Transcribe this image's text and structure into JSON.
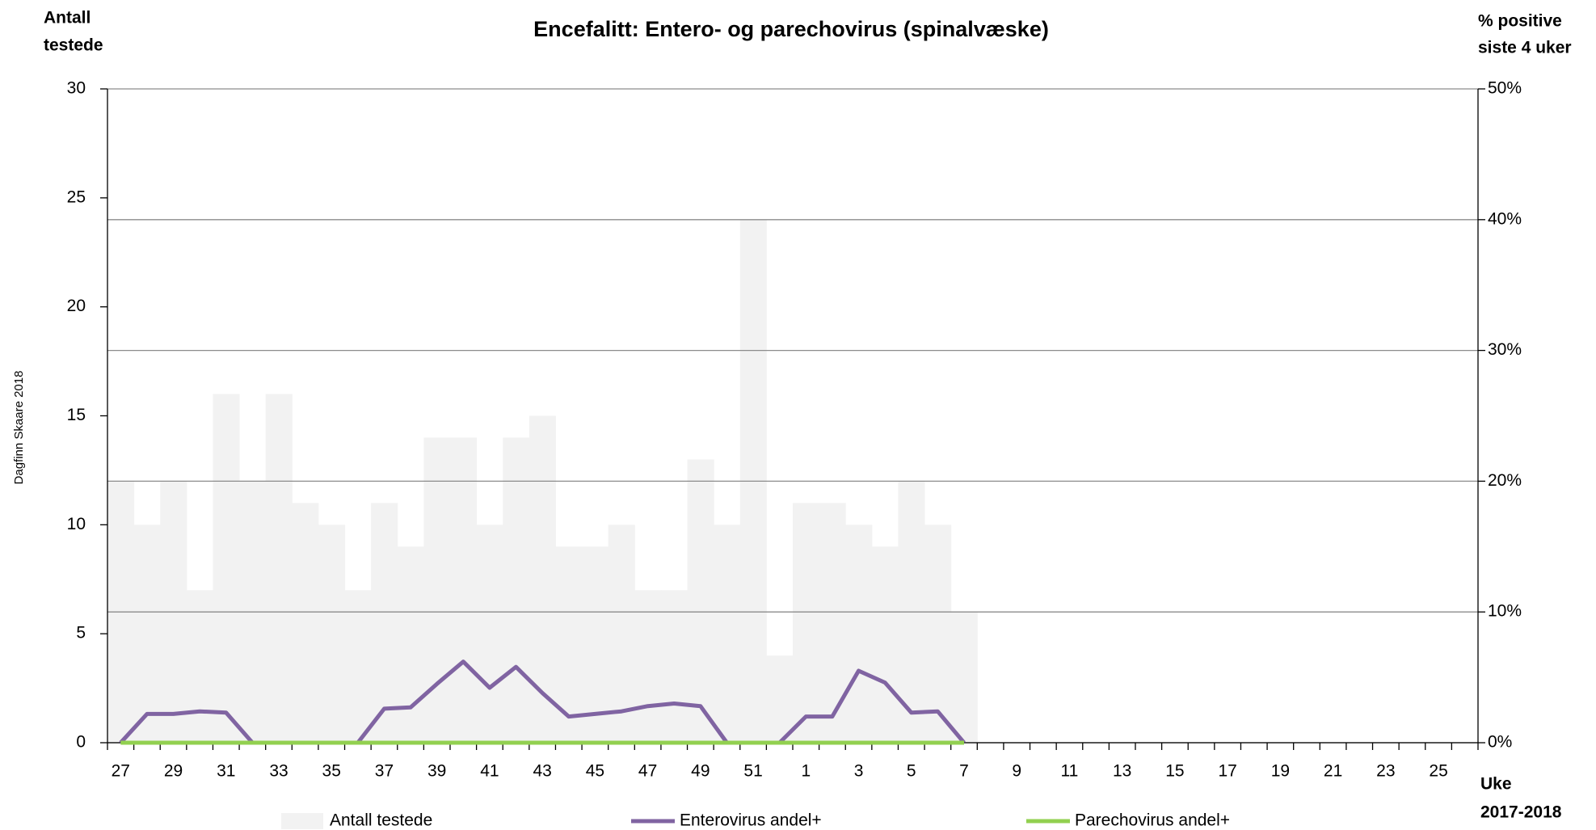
{
  "chart_data": {
    "type": "bar",
    "title": "Encefalitt: Entero- og parechovirus (spinalvæske)",
    "y_label": [
      "Antall",
      "testede"
    ],
    "y2_label": [
      "% positive",
      "siste 4 uker"
    ],
    "x_label": [
      "Uke",
      "2017-2018"
    ],
    "credit": "Dagfinn Skaare 2018",
    "categories": [
      "27",
      null,
      "29",
      null,
      "31",
      null,
      "33",
      null,
      "35",
      null,
      "37",
      null,
      "39",
      null,
      "41",
      null,
      "43",
      null,
      "45",
      null,
      "47",
      null,
      "49",
      null,
      "51",
      null,
      "1",
      null,
      "3",
      null,
      "5",
      null,
      "7",
      null,
      "9",
      null,
      "11",
      null,
      "13",
      null,
      "15",
      null,
      "17",
      null,
      "19",
      null,
      "21",
      null,
      "23",
      null,
      "25",
      null
    ],
    "series": [
      {
        "name": "Antall testede",
        "type": "bar",
        "color": "#f2f2f2",
        "values": [
          12,
          10,
          12,
          7,
          16,
          12,
          16,
          11,
          10,
          7,
          11,
          9,
          14,
          14,
          10,
          14,
          15,
          9,
          9,
          10,
          7,
          7,
          13,
          10,
          24,
          4,
          11,
          11,
          10,
          9,
          12,
          10,
          6,
          null,
          null,
          null,
          null,
          null,
          null,
          null,
          null,
          null,
          null,
          null,
          null,
          null,
          null,
          null,
          null,
          null,
          null,
          null
        ]
      },
      {
        "name": "Enterovirus andel+",
        "type": "line",
        "axis": "y2",
        "color": "#8064a2",
        "values": [
          0,
          2.2,
          2.2,
          2.4,
          2.3,
          0,
          0,
          0,
          0,
          0,
          2.6,
          2.7,
          4.5,
          6.2,
          4.2,
          5.8,
          3.8,
          2,
          2.2,
          2.4,
          2.8,
          3,
          2.8,
          0,
          0,
          0,
          2,
          2,
          5.5,
          4.6,
          2.3,
          2.4,
          0,
          null,
          null,
          null,
          null,
          null,
          null,
          null,
          null,
          null,
          null,
          null,
          null,
          null,
          null,
          null,
          null,
          null,
          null,
          null
        ]
      },
      {
        "name": "Parechovirus andel+",
        "type": "line",
        "axis": "y2",
        "color": "#92d050",
        "values": [
          0,
          0,
          0,
          0,
          0,
          0,
          0,
          0,
          0,
          0,
          0,
          0,
          0,
          0,
          0,
          0,
          0,
          0,
          0,
          0,
          0,
          0,
          0,
          0,
          0,
          0,
          0,
          0,
          0,
          0,
          0,
          0,
          0,
          null,
          null,
          null,
          null,
          null,
          null,
          null,
          null,
          null,
          null,
          null,
          null,
          null,
          null,
          null,
          null,
          null,
          null,
          null
        ]
      }
    ],
    "ylim": [
      0,
      30
    ],
    "yticks": [
      0,
      5,
      10,
      15,
      20,
      25,
      30
    ],
    "y2lim": [
      0,
      50
    ],
    "y2ticks": [
      {
        "value": 0,
        "label": "0%"
      },
      {
        "value": 10,
        "label": "10%"
      },
      {
        "value": 20,
        "label": "20%"
      },
      {
        "value": 30,
        "label": "30%"
      },
      {
        "value": 40,
        "label": "40%"
      },
      {
        "value": 50,
        "label": "50%"
      }
    ],
    "grid": true
  }
}
